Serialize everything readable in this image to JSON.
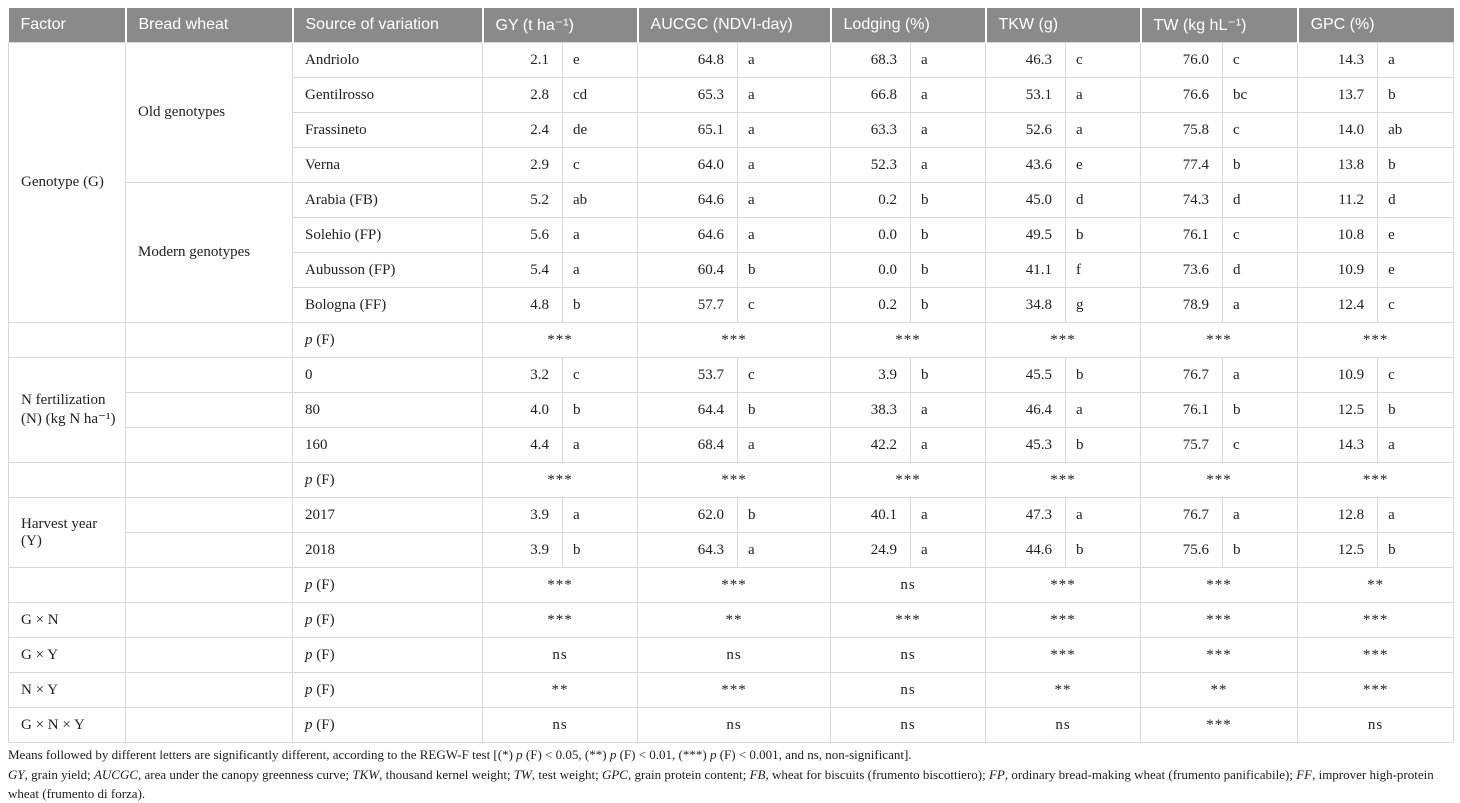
{
  "table": {
    "headers": [
      "Factor",
      "Bread wheat",
      "Source of variation",
      "GY (t ha⁻¹)",
      "AUCGC (NDVI-day)",
      "Lodging (%)",
      "TKW (g)",
      "TW (kg hL⁻¹)",
      "GPC (%)"
    ],
    "pf_label": {
      "p": "p",
      "rest": " (F)"
    },
    "rows": [
      {
        "factor": {
          "label": "Genotype (G)",
          "rowspan": 8
        },
        "group": {
          "label": "Old genotypes",
          "rowspan": 4
        },
        "source": "Andriolo",
        "cells": [
          [
            "2.1",
            "e"
          ],
          [
            "64.8",
            "a"
          ],
          [
            "68.3",
            "a"
          ],
          [
            "46.3",
            "c"
          ],
          [
            "76.0",
            "c"
          ],
          [
            "14.3",
            "a"
          ]
        ]
      },
      {
        "source": "Gentilrosso",
        "cells": [
          [
            "2.8",
            "cd"
          ],
          [
            "65.3",
            "a"
          ],
          [
            "66.8",
            "a"
          ],
          [
            "53.1",
            "a"
          ],
          [
            "76.6",
            "bc"
          ],
          [
            "13.7",
            "b"
          ]
        ]
      },
      {
        "source": "Frassineto",
        "cells": [
          [
            "2.4",
            "de"
          ],
          [
            "65.1",
            "a"
          ],
          [
            "63.3",
            "a"
          ],
          [
            "52.6",
            "a"
          ],
          [
            "75.8",
            "c"
          ],
          [
            "14.0",
            "ab"
          ]
        ]
      },
      {
        "source": "Verna",
        "cells": [
          [
            "2.9",
            "c"
          ],
          [
            "64.0",
            "a"
          ],
          [
            "52.3",
            "a"
          ],
          [
            "43.6",
            "e"
          ],
          [
            "77.4",
            "b"
          ],
          [
            "13.8",
            "b"
          ]
        ]
      },
      {
        "group": {
          "label": "Modern genotypes",
          "rowspan": 4
        },
        "source": "Arabia (FB)",
        "cells": [
          [
            "5.2",
            "ab"
          ],
          [
            "64.6",
            "a"
          ],
          [
            "0.2",
            "b"
          ],
          [
            "45.0",
            "d"
          ],
          [
            "74.3",
            "d"
          ],
          [
            "11.2",
            "d"
          ]
        ]
      },
      {
        "source": "Solehio (FP)",
        "cells": [
          [
            "5.6",
            "a"
          ],
          [
            "64.6",
            "a"
          ],
          [
            "0.0",
            "b"
          ],
          [
            "49.5",
            "b"
          ],
          [
            "76.1",
            "c"
          ],
          [
            "10.8",
            "e"
          ]
        ]
      },
      {
        "source": "Aubusson (FP)",
        "cells": [
          [
            "5.4",
            "a"
          ],
          [
            "60.4",
            "b"
          ],
          [
            "0.0",
            "b"
          ],
          [
            "41.1",
            "f"
          ],
          [
            "73.6",
            "d"
          ],
          [
            "10.9",
            "e"
          ]
        ]
      },
      {
        "source": "Bologna (FF)",
        "cells": [
          [
            "4.8",
            "b"
          ],
          [
            "57.7",
            "c"
          ],
          [
            "0.2",
            "b"
          ],
          [
            "34.8",
            "g"
          ],
          [
            "78.9",
            "a"
          ],
          [
            "12.4",
            "c"
          ]
        ]
      },
      {
        "factor": {
          "label": "",
          "rowspan": 1
        },
        "group": {
          "label": "",
          "rowspan": 1
        },
        "pf": true,
        "sig": [
          "***",
          "***",
          "***",
          "***",
          "***",
          "***"
        ]
      },
      {
        "factor": {
          "label": "N fertilization (N) (kg N ha⁻¹)",
          "rowspan": 3
        },
        "group": {
          "label": "",
          "rowspan": 1
        },
        "source": "0",
        "cells": [
          [
            "3.2",
            "c"
          ],
          [
            "53.7",
            "c"
          ],
          [
            "3.9",
            "b"
          ],
          [
            "45.5",
            "b"
          ],
          [
            "76.7",
            "a"
          ],
          [
            "10.9",
            "c"
          ]
        ]
      },
      {
        "group": {
          "label": "",
          "rowspan": 1
        },
        "source": "80",
        "cells": [
          [
            "4.0",
            "b"
          ],
          [
            "64.4",
            "b"
          ],
          [
            "38.3",
            "a"
          ],
          [
            "46.4",
            "a"
          ],
          [
            "76.1",
            "b"
          ],
          [
            "12.5",
            "b"
          ]
        ]
      },
      {
        "group": {
          "label": "",
          "rowspan": 1
        },
        "source": "160",
        "cells": [
          [
            "4.4",
            "a"
          ],
          [
            "68.4",
            "a"
          ],
          [
            "42.2",
            "a"
          ],
          [
            "45.3",
            "b"
          ],
          [
            "75.7",
            "c"
          ],
          [
            "14.3",
            "a"
          ]
        ]
      },
      {
        "factor": {
          "label": "",
          "rowspan": 1
        },
        "group": {
          "label": "",
          "rowspan": 1
        },
        "pf": true,
        "sig": [
          "***",
          "***",
          "***",
          "***",
          "***",
          "***"
        ]
      },
      {
        "factor": {
          "label": "Harvest year (Y)",
          "rowspan": 2
        },
        "group": {
          "label": "",
          "rowspan": 1
        },
        "source": "2017",
        "cells": [
          [
            "3.9",
            "a"
          ],
          [
            "62.0",
            "b"
          ],
          [
            "40.1",
            "a"
          ],
          [
            "47.3",
            "a"
          ],
          [
            "76.7",
            "a"
          ],
          [
            "12.8",
            "a"
          ]
        ]
      },
      {
        "group": {
          "label": "",
          "rowspan": 1
        },
        "source": "2018",
        "cells": [
          [
            "3.9",
            "b"
          ],
          [
            "64.3",
            "a"
          ],
          [
            "24.9",
            "a"
          ],
          [
            "44.6",
            "b"
          ],
          [
            "75.6",
            "b"
          ],
          [
            "12.5",
            "b"
          ]
        ]
      },
      {
        "factor": {
          "label": "",
          "rowspan": 1
        },
        "group": {
          "label": "",
          "rowspan": 1
        },
        "pf": true,
        "sig": [
          "***",
          "***",
          "ns",
          "***",
          "***",
          "**"
        ]
      },
      {
        "factor": {
          "label": "G × N",
          "rowspan": 1
        },
        "group": {
          "label": "",
          "rowspan": 1
        },
        "pf": true,
        "sig": [
          "***",
          "**",
          "***",
          "***",
          "***",
          "***"
        ]
      },
      {
        "factor": {
          "label": "G × Y",
          "rowspan": 1
        },
        "group": {
          "label": "",
          "rowspan": 1
        },
        "pf": true,
        "sig": [
          "ns",
          "ns",
          "ns",
          "***",
          "***",
          "***"
        ]
      },
      {
        "factor": {
          "label": "N × Y",
          "rowspan": 1
        },
        "group": {
          "label": "",
          "rowspan": 1
        },
        "pf": true,
        "sig": [
          "**",
          "***",
          "ns",
          "**",
          "**",
          "***"
        ]
      },
      {
        "factor": {
          "label": "G × N × Y",
          "rowspan": 1
        },
        "group": {
          "label": "",
          "rowspan": 1
        },
        "pf": true,
        "sig": [
          "ns",
          "ns",
          "ns",
          "ns",
          "***",
          "ns"
        ]
      }
    ]
  },
  "footnotes": [
    {
      "segments": [
        {
          "t": "Means followed by different letters are significantly different, according to the REGW-F test [(*) "
        },
        {
          "i": 1,
          "t": "p"
        },
        {
          "t": " (F) < 0.05, (**) "
        },
        {
          "i": 1,
          "t": "p"
        },
        {
          "t": " (F) < 0.01, (***) "
        },
        {
          "i": 1,
          "t": "p"
        },
        {
          "t": " (F) < 0.001, and ns, non-significant]."
        }
      ]
    },
    {
      "segments": [
        {
          "i": 1,
          "t": "GY"
        },
        {
          "t": ", grain yield; "
        },
        {
          "i": 1,
          "t": "AUCGC"
        },
        {
          "t": ", area under the canopy greenness curve; "
        },
        {
          "i": 1,
          "t": "TKW"
        },
        {
          "t": ", thousand kernel weight; "
        },
        {
          "i": 1,
          "t": "TW"
        },
        {
          "t": ", test weight; "
        },
        {
          "i": 1,
          "t": "GPC"
        },
        {
          "t": ", grain protein content; "
        },
        {
          "i": 1,
          "t": "FB"
        },
        {
          "t": ", wheat for biscuits (frumento biscottiero); "
        },
        {
          "i": 1,
          "t": "FP"
        },
        {
          "t": ", ordinary bread-making wheat (frumento panificabile); "
        },
        {
          "i": 1,
          "t": "FF"
        },
        {
          "t": ", improver high-protein wheat (frumento di forza)."
        }
      ]
    }
  ]
}
